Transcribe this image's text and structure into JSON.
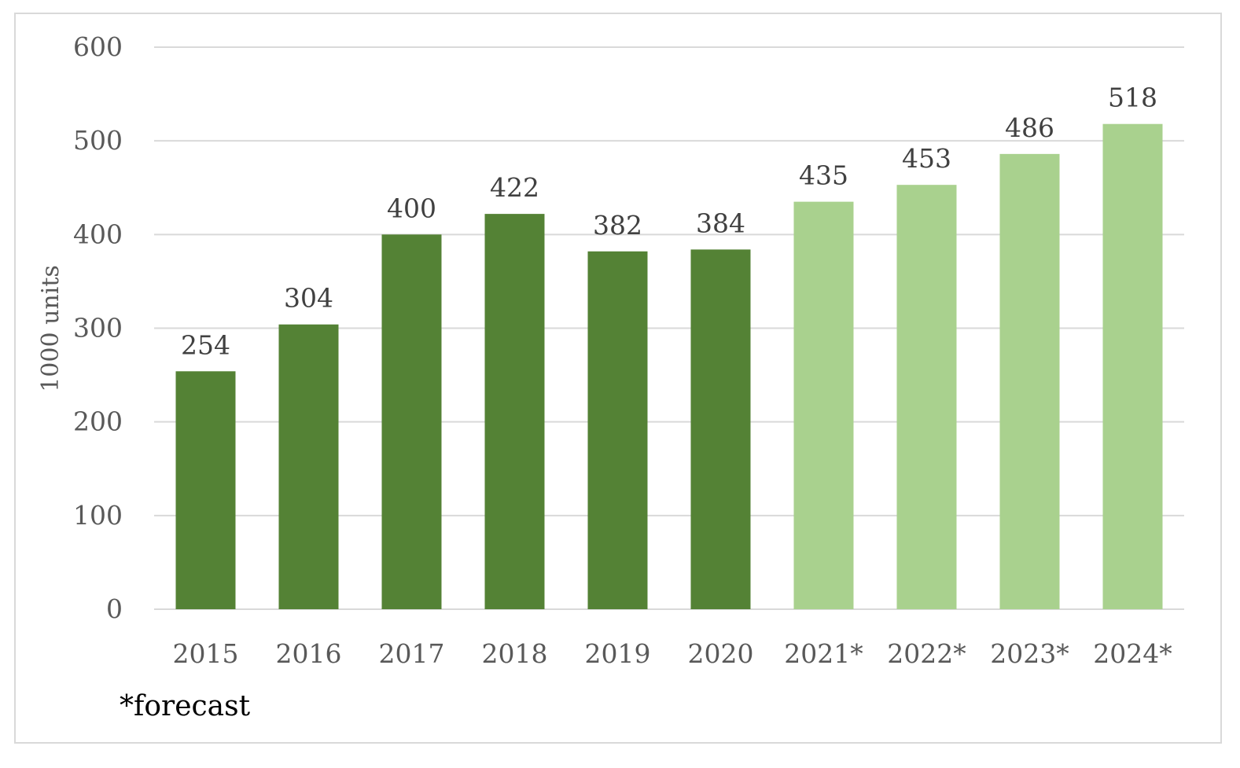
{
  "colors": {
    "actual": "#548235",
    "forecast": "#a9d18e",
    "grid": "#d9d9d9",
    "text": "#595959",
    "label": "#404040"
  },
  "footnote": "*forecast",
  "chart_data": {
    "type": "bar",
    "title": "",
    "xlabel": "",
    "ylabel": "1000 units",
    "ylim": [
      0,
      600
    ],
    "yticks": [
      0,
      100,
      200,
      300,
      400,
      500,
      600
    ],
    "grid": true,
    "categories": [
      "2015",
      "2016",
      "2017",
      "2018",
      "2019",
      "2020",
      "2021*",
      "2022*",
      "2023*",
      "2024*"
    ],
    "values": [
      254,
      304,
      400,
      422,
      382,
      384,
      435,
      453,
      486,
      518
    ],
    "forecast_flags": [
      false,
      false,
      false,
      false,
      false,
      false,
      true,
      true,
      true,
      true
    ]
  }
}
